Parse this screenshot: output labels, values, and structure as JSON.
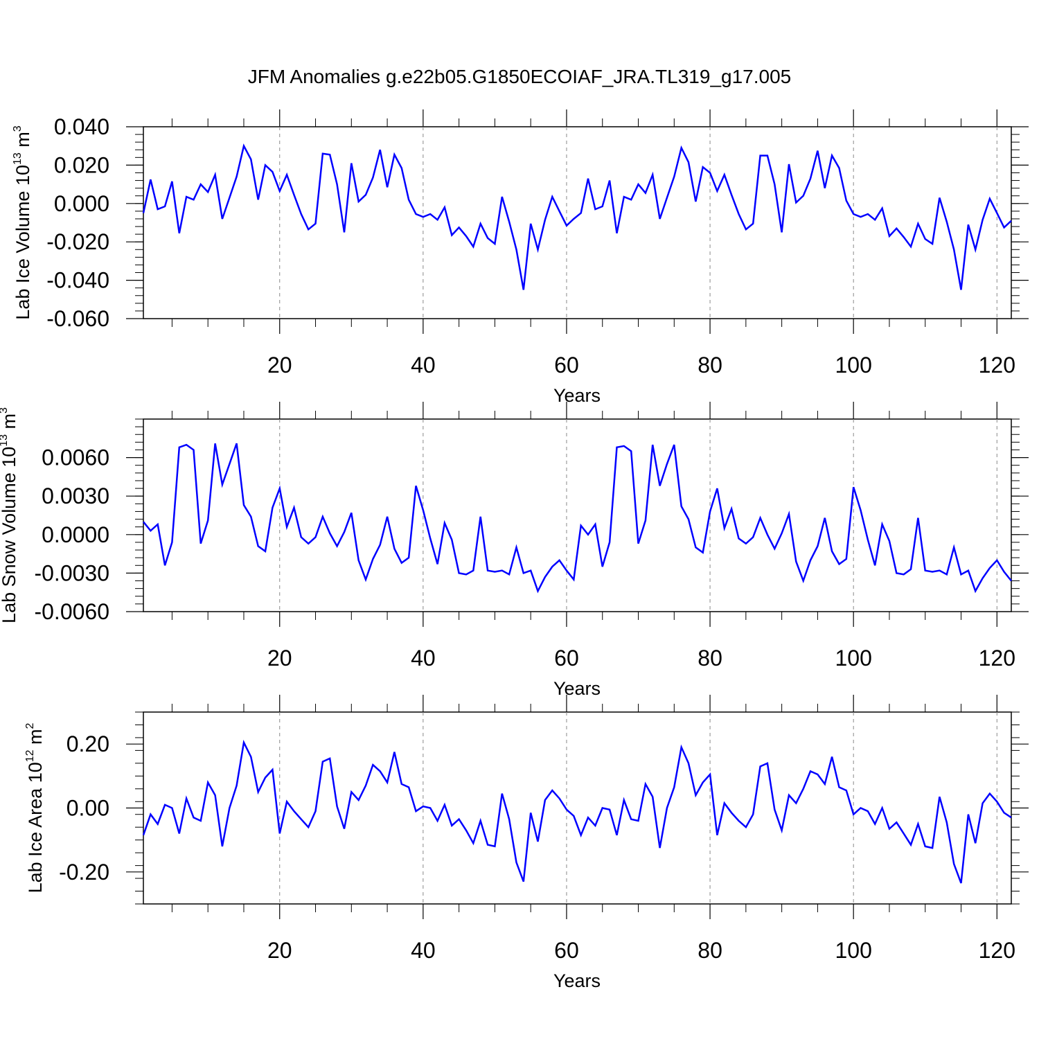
{
  "figure": {
    "title": "JFM Anomalies g.e22b05.G1850ECOIAF_JRA.TL319_g17.005",
    "line_color": "#0000ff",
    "grid_color": "#888888"
  },
  "chart_data": [
    {
      "type": "line",
      "title": "",
      "xlabel": "Years",
      "ylabel": "Lab Ice Volume 10",
      "ylabel_exponent": "13",
      "ylabel_unit": " m",
      "ylabel_unit_exponent": "3",
      "xlim": [
        1,
        122
      ],
      "ylim": [
        -0.06,
        0.04
      ],
      "x_ticks": [
        20,
        40,
        60,
        80,
        100,
        120
      ],
      "x_tick_labels": [
        "20",
        "40",
        "60",
        "80",
        "100",
        "120"
      ],
      "y_ticks": [
        -0.06,
        -0.04,
        -0.02,
        0.0,
        0.02,
        0.04
      ],
      "y_tick_labels": [
        "-0.060",
        "-0.040",
        "-0.020",
        "0.000",
        "0.020",
        "0.040"
      ],
      "grid": "vertical dashed at x ticks",
      "series": [
        {
          "values": [
            -0.005,
            0.0125,
            -0.003,
            -0.0015,
            0.0115,
            -0.0155,
            0.0035,
            0.002,
            0.01,
            0.006,
            0.015,
            -0.008,
            0.003,
            0.014,
            0.03,
            0.023,
            0.002,
            0.02,
            0.0165,
            0.0065,
            0.015,
            0.0045,
            -0.0055,
            -0.0135,
            -0.0105,
            0.026,
            0.0255,
            0.01,
            -0.015,
            0.021,
            0.001,
            0.0045,
            0.0135,
            0.028,
            0.0085,
            0.0255,
            0.0185,
            0.002,
            -0.0055,
            -0.007,
            -0.0055,
            -0.0085,
            -0.002,
            -0.0165,
            -0.0125,
            -0.017,
            -0.0225,
            -0.0105,
            -0.018,
            -0.021,
            0.0035,
            -0.0095,
            -0.024,
            -0.045,
            -0.0105,
            -0.024,
            -0.0085,
            0.0035,
            -0.004,
            -0.0115,
            -0.008,
            -0.005,
            0.013,
            -0.003,
            -0.0015,
            0.012,
            -0.0155,
            0.0035,
            0.002,
            0.01,
            0.0055,
            0.015,
            -0.008,
            0.003,
            0.014,
            0.029,
            0.0215,
            0.001,
            0.019,
            0.016,
            0.0065,
            0.015,
            0.0045,
            -0.0055,
            -0.0135,
            -0.0105,
            0.025,
            0.025,
            0.01,
            -0.015,
            0.0205,
            0.0005,
            0.004,
            0.013,
            0.0275,
            0.008,
            0.025,
            0.0185,
            0.0015,
            -0.0055,
            -0.007,
            -0.0055,
            -0.0085,
            -0.0025,
            -0.017,
            -0.013,
            -0.0175,
            -0.0225,
            -0.0105,
            -0.0185,
            -0.021,
            0.003,
            -0.0095,
            -0.024,
            -0.045,
            -0.011,
            -0.024,
            -0.0085,
            0.0025,
            -0.005,
            -0.0125,
            -0.009
          ]
        }
      ]
    },
    {
      "type": "line",
      "title": "",
      "xlabel": "Years",
      "ylabel": "Lab Snow Volume 10",
      "ylabel_exponent": "13",
      "ylabel_unit": " m",
      "ylabel_unit_exponent": "3",
      "xlim": [
        1,
        122
      ],
      "ylim": [
        -0.006,
        0.009
      ],
      "x_ticks": [
        20,
        40,
        60,
        80,
        100,
        120
      ],
      "x_tick_labels": [
        "20",
        "40",
        "60",
        "80",
        "100",
        "120"
      ],
      "y_ticks": [
        -0.006,
        -0.003,
        0.0,
        0.003,
        0.006
      ],
      "y_tick_labels": [
        "-0.0060",
        "-0.0030",
        "0.0000",
        "0.0030",
        "0.0060"
      ],
      "grid": "vertical dashed at x ticks",
      "series": [
        {
          "values": [
            0.001,
            0.0003,
            0.0008,
            -0.0024,
            -0.0006,
            0.0068,
            0.007,
            0.0066,
            -0.0007,
            0.0011,
            0.0071,
            0.0039,
            0.0055,
            0.0071,
            0.0023,
            0.0014,
            -0.0009,
            -0.0013,
            0.0021,
            0.0036,
            0.0006,
            0.0021,
            -0.0002,
            -0.0007,
            -0.0002,
            0.0014,
            0.0001,
            -0.0009,
            0.0002,
            0.0017,
            -0.002,
            -0.0035,
            -0.0019,
            -0.0008,
            0.0014,
            -0.0011,
            -0.0022,
            -0.0018,
            0.0038,
            0.0019,
            -0.0003,
            -0.0023,
            0.0009,
            -0.0004,
            -0.003,
            -0.0031,
            -0.0028,
            0.0014,
            -0.0028,
            -0.0029,
            -0.0028,
            -0.0031,
            -0.001,
            -0.003,
            -0.0028,
            -0.0044,
            -0.0033,
            -0.0025,
            -0.002,
            -0.0028,
            -0.0035,
            0.0007,
            0.0,
            0.0008,
            -0.0025,
            -0.0006,
            0.0068,
            0.0069,
            0.0065,
            -0.0007,
            0.0011,
            0.007,
            0.0038,
            0.0055,
            0.007,
            0.0022,
            0.0012,
            -0.001,
            -0.0014,
            0.0018,
            0.0036,
            0.0005,
            0.002,
            -0.0003,
            -0.0007,
            -0.0002,
            0.0013,
            0.0,
            -0.0011,
            0.0001,
            0.0016,
            -0.0021,
            -0.0036,
            -0.002,
            -0.0009,
            0.0013,
            -0.0013,
            -0.0023,
            -0.0019,
            0.0037,
            0.0019,
            -0.0004,
            -0.0024,
            0.0008,
            -0.0005,
            -0.003,
            -0.0031,
            -0.0027,
            0.0013,
            -0.0028,
            -0.0029,
            -0.0028,
            -0.0031,
            -0.001,
            -0.0031,
            -0.0028,
            -0.0044,
            -0.0034,
            -0.0026,
            -0.002,
            -0.0029,
            -0.0036
          ]
        }
      ]
    },
    {
      "type": "line",
      "title": "",
      "xlabel": "Years",
      "ylabel": "Lab Ice Area 10",
      "ylabel_exponent": "12",
      "ylabel_unit": " m",
      "ylabel_unit_exponent": "2",
      "xlim": [
        1,
        122
      ],
      "ylim": [
        -0.3,
        0.3
      ],
      "x_ticks": [
        20,
        40,
        60,
        80,
        100,
        120
      ],
      "x_tick_labels": [
        "20",
        "40",
        "60",
        "80",
        "100",
        "120"
      ],
      "y_ticks": [
        -0.2,
        0.0,
        0.2
      ],
      "y_tick_labels": [
        "-0.20",
        "0.00",
        "0.20"
      ],
      "grid": "vertical dashed at x ticks",
      "series": [
        {
          "values": [
            -0.085,
            -0.02,
            -0.05,
            0.01,
            0.0,
            -0.08,
            0.03,
            -0.03,
            -0.04,
            0.08,
            0.04,
            -0.12,
            0.0,
            0.07,
            0.205,
            0.16,
            0.05,
            0.095,
            0.12,
            -0.08,
            0.02,
            -0.01,
            -0.035,
            -0.06,
            -0.01,
            0.145,
            0.155,
            0.005,
            -0.065,
            0.05,
            0.025,
            0.07,
            0.135,
            0.115,
            0.08,
            0.175,
            0.075,
            0.065,
            -0.01,
            0.005,
            0.0,
            -0.04,
            0.01,
            -0.055,
            -0.035,
            -0.07,
            -0.11,
            -0.04,
            -0.115,
            -0.12,
            0.045,
            -0.035,
            -0.17,
            -0.23,
            -0.015,
            -0.105,
            0.025,
            0.055,
            0.03,
            -0.005,
            -0.025,
            -0.085,
            -0.03,
            -0.055,
            0.0,
            -0.005,
            -0.085,
            0.025,
            -0.035,
            -0.04,
            0.075,
            0.035,
            -0.125,
            0.0,
            0.065,
            0.19,
            0.14,
            0.04,
            0.08,
            0.105,
            -0.085,
            0.015,
            -0.015,
            -0.04,
            -0.06,
            -0.02,
            0.13,
            0.14,
            -0.005,
            -0.07,
            0.04,
            0.015,
            0.06,
            0.115,
            0.105,
            0.075,
            0.16,
            0.065,
            0.055,
            -0.02,
            0.0,
            -0.01,
            -0.05,
            0.0,
            -0.065,
            -0.045,
            -0.08,
            -0.115,
            -0.05,
            -0.12,
            -0.125,
            0.035,
            -0.045,
            -0.175,
            -0.235,
            -0.02,
            -0.11,
            0.015,
            0.045,
            0.02,
            -0.015,
            -0.03
          ]
        }
      ]
    }
  ]
}
